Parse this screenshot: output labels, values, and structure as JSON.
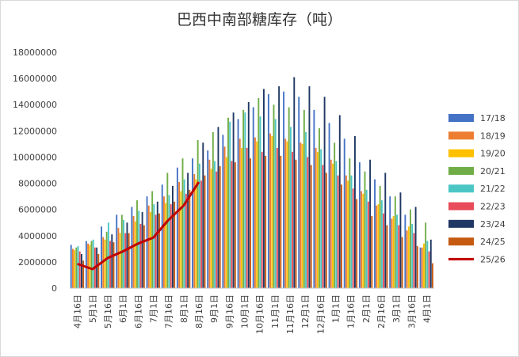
{
  "chart_data": {
    "type": "bar",
    "title": "巴西中南部糖库存（吨）",
    "xlabel": "",
    "ylabel": "",
    "ylim": [
      0,
      18000000
    ],
    "yticks": [
      "0",
      "2000000",
      "4000000",
      "6000000",
      "8000000",
      "10000000",
      "12000000",
      "14000000",
      "16000000",
      "18000000"
    ],
    "grid": false,
    "legend": "right",
    "categories": [
      "4月16日",
      "5月1日",
      "5月16日",
      "6月1日",
      "6月16日",
      "7月1日",
      "7月16日",
      "8月1日",
      "8月16日",
      "9月1日",
      "9月16日",
      "10月1日",
      "10月16日",
      "11月1日",
      "11月16日",
      "12月1日",
      "12月16日",
      "1月1日",
      "1月16日",
      "2月1日",
      "2月16日",
      "3月1日",
      "3月16日",
      "4月1日"
    ],
    "xtick_labels": [
      "4月16日",
      "5月1日",
      "5月16日",
      "6月1日",
      "6月16日",
      "7月1日",
      "7月16日",
      "8月1日",
      "8月16日",
      "9月1日",
      "9月16日",
      "10月1日",
      "10月16日",
      "11月1日",
      "11月16日",
      "12月1日",
      "12月16日",
      "1月1日",
      "1月16日",
      "2月1日",
      "2月16日",
      "3月1日",
      "3月16日",
      "4月1日"
    ],
    "series": [
      {
        "name": "17/18",
        "color": "#4472c4",
        "values": [
          3300000,
          3600000,
          4700000,
          5600000,
          6200000,
          7000000,
          7900000,
          9200000,
          9900000,
          10500000,
          11700000,
          12900000,
          13800000,
          14800000,
          15000000,
          14600000,
          13600000,
          12600000,
          11400000,
          9600000,
          8300000,
          7000000,
          5600000,
          3100000
        ]
      },
      {
        "name": "18/19",
        "color": "#ed7d31",
        "values": [
          3000000,
          3400000,
          3900000,
          4600000,
          5500000,
          6300000,
          7000000,
          8100000,
          8700000,
          9800000,
          10800000,
          11400000,
          11500000,
          11800000,
          11400000,
          11100000,
          10700000,
          9800000,
          8600000,
          7400000,
          6300000,
          5300000,
          4400000,
          3100000
        ]
      },
      {
        "name": "19/20",
        "color": "#ffc000",
        "values": [
          2900000,
          3300000,
          3700000,
          4200000,
          5100000,
          5800000,
          6500000,
          7400000,
          8300000,
          9100000,
          10000000,
          10700000,
          11200000,
          11600000,
          11200000,
          11000000,
          10400000,
          9500000,
          8200000,
          7200000,
          6400000,
          5500000,
          4700000,
          3400000
        ]
      },
      {
        "name": "20/21",
        "color": "#70ad47",
        "values": [
          3100000,
          3600000,
          4300000,
          5600000,
          6700000,
          7400000,
          8800000,
          9900000,
          11300000,
          11900000,
          13000000,
          13600000,
          14500000,
          14000000,
          13800000,
          13600000,
          12200000,
          11100000,
          9900000,
          8900000,
          7800000,
          7000000,
          6000000,
          5000000
        ]
      },
      {
        "name": "21/22",
        "color": "#4bc6c4",
        "values": [
          3200000,
          3700000,
          5000000,
          5200000,
          5900000,
          6400000,
          7100000,
          8300000,
          9500000,
          9700000,
          12700000,
          13400000,
          13100000,
          12900000,
          12300000,
          11900000,
          10600000,
          9700000,
          8600000,
          7500000,
          6700000,
          5600000,
          4900000,
          3600000
        ]
      },
      {
        "name": "22/23",
        "color": "#e84c5a",
        "values": [
          2800000,
          3100000,
          3600000,
          4200000,
          4900000,
          5600000,
          6400000,
          7200000,
          8200000,
          8900000,
          9700000,
          10700000,
          10400000,
          10700000,
          10400000,
          10000000,
          9400000,
          8600000,
          7600000,
          6600000,
          5700000,
          4800000,
          4200000,
          2800000
        ]
      },
      {
        "name": "23/24",
        "color": "#203864",
        "values": [
          2600000,
          3100000,
          4100000,
          5000000,
          5800000,
          6600000,
          7800000,
          8800000,
          11100000,
          12300000,
          13400000,
          14200000,
          15200000,
          15400000,
          16100000,
          15400000,
          14600000,
          13200000,
          11600000,
          9800000,
          8800000,
          7300000,
          6200000,
          3700000
        ]
      },
      {
        "name": "24/25",
        "color": "#c55a11",
        "values": [
          2100000,
          2600000,
          3500000,
          4200000,
          4800000,
          5700000,
          6600000,
          7500000,
          8600000,
          9300000,
          9600000,
          9900000,
          10100000,
          10100000,
          9800000,
          9400000,
          8800000,
          7900000,
          6800000,
          5500000,
          4800000,
          3900000,
          3200000,
          1900000
        ]
      },
      {
        "name": "25/26",
        "color": "#c00000",
        "type": "line",
        "values": [
          1850000,
          1450000,
          2300000,
          2800000,
          3400000,
          3850000,
          5200000,
          6300000,
          8100000,
          null,
          null,
          null,
          null,
          null,
          null,
          null,
          null,
          null,
          null,
          null,
          null,
          null,
          null,
          null
        ]
      }
    ]
  }
}
